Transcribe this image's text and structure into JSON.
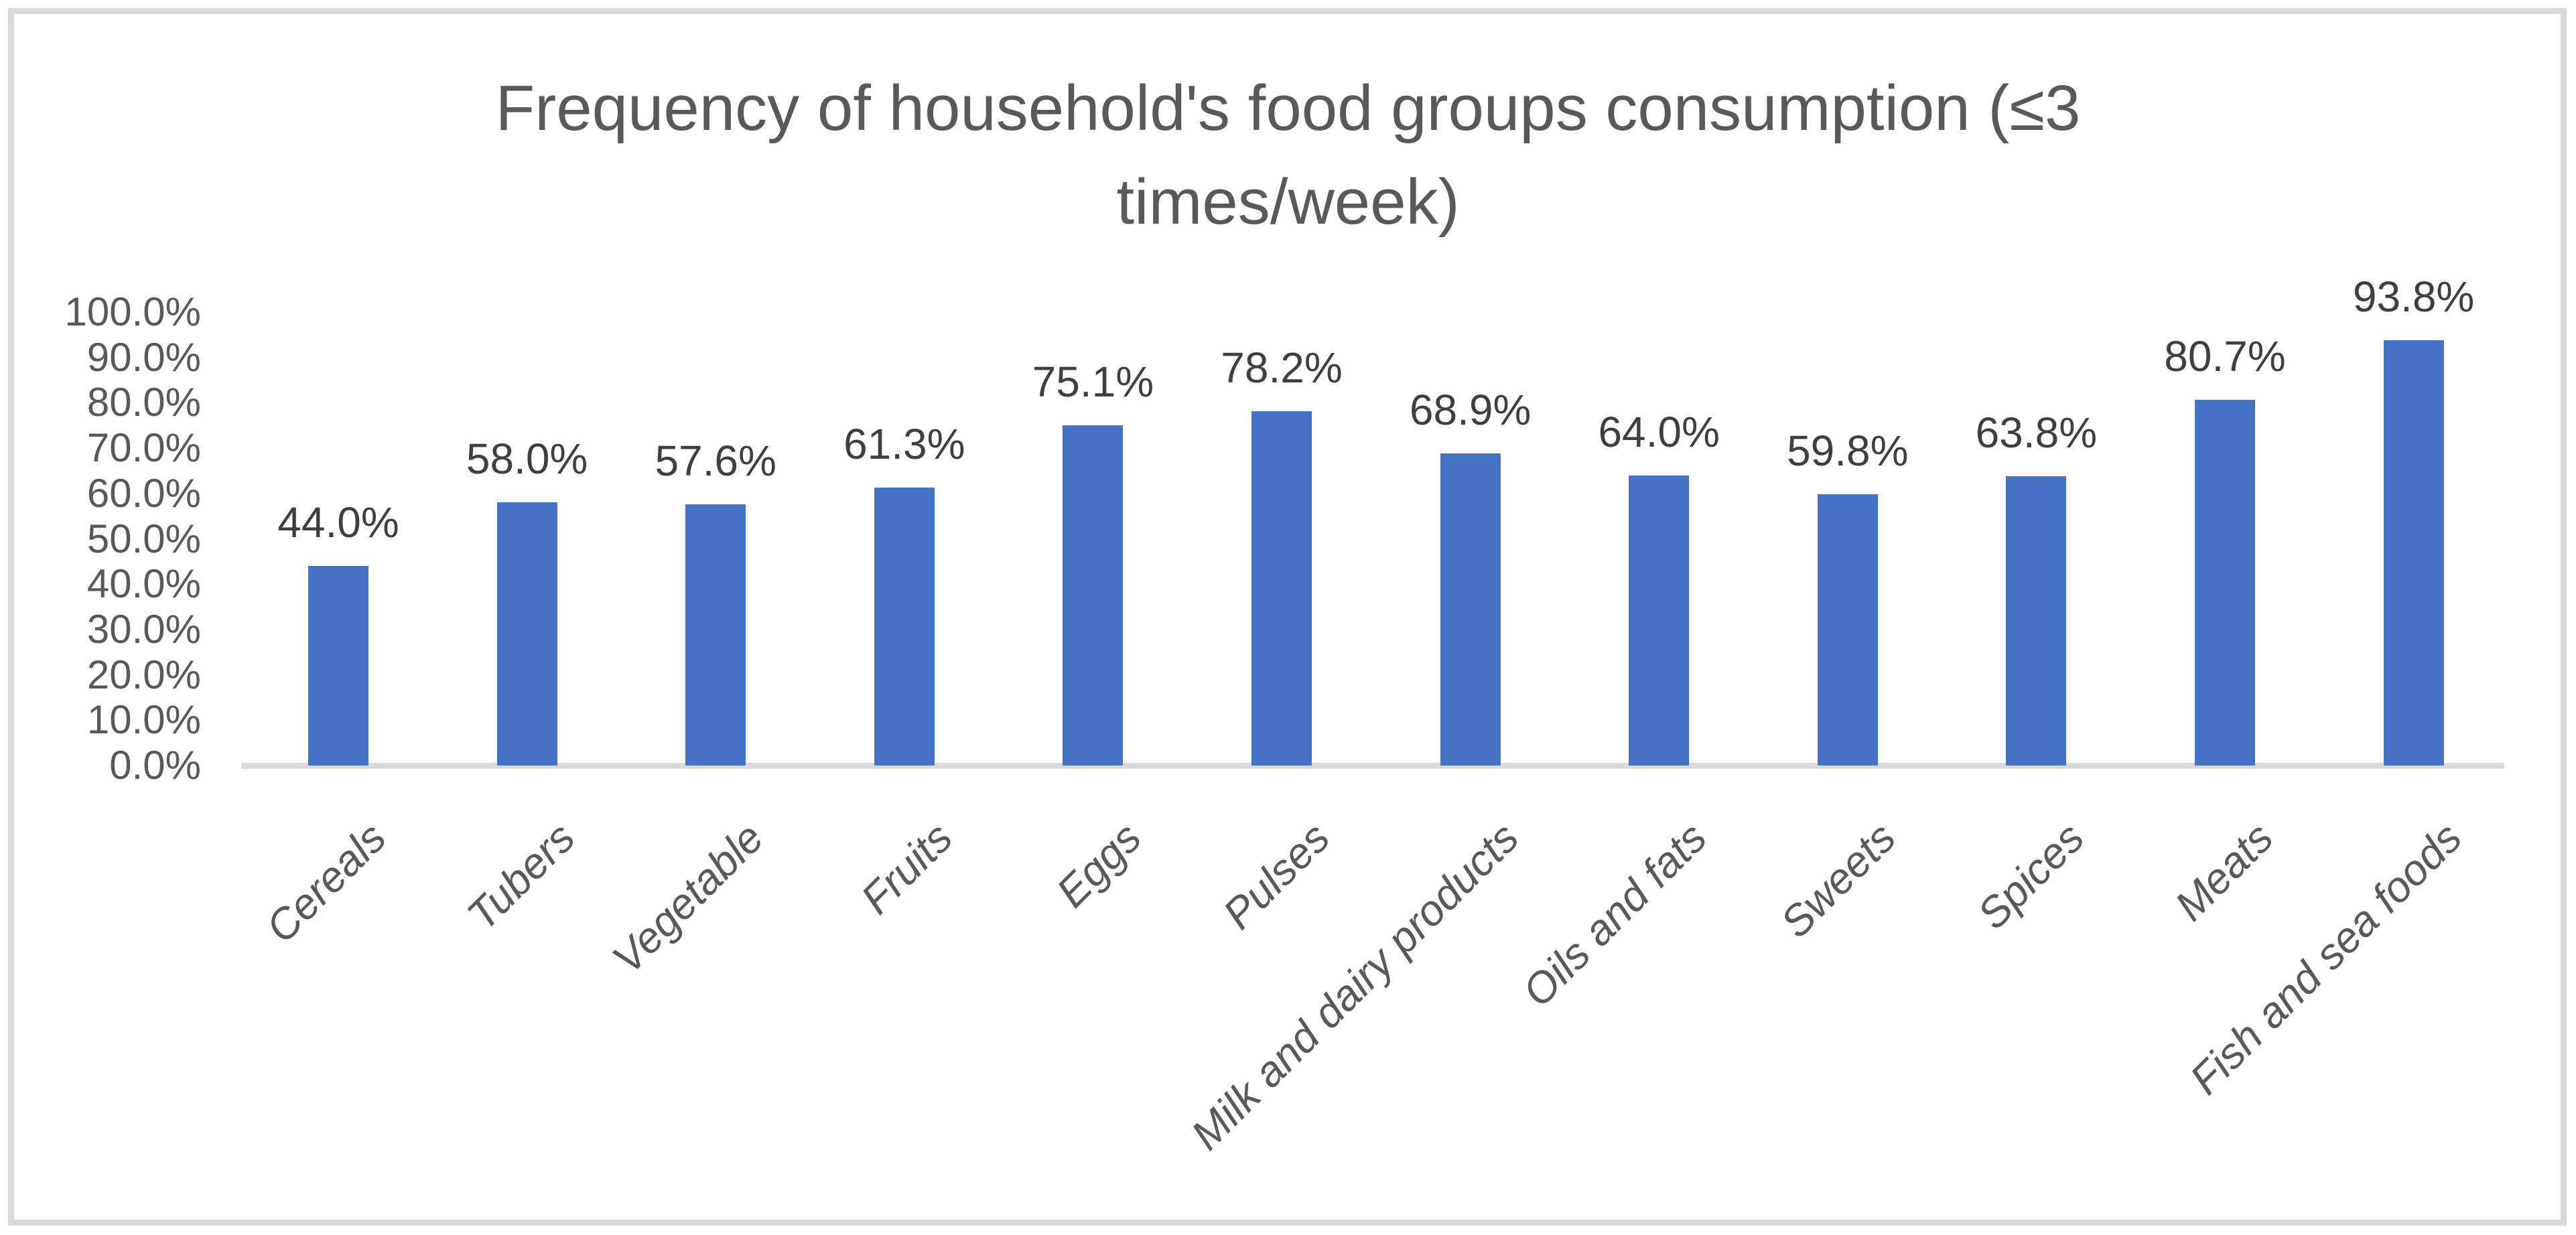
{
  "title": {
    "lines": [
      "Frequency of household's food groups consumption (≤3",
      "times/week)"
    ]
  },
  "colors": {
    "bar": "#4472C4",
    "axis_line": "#D9D9D9",
    "frame_border": "#D9D9D9",
    "title_text": "#595959",
    "tick_text": "#595959",
    "data_label_text": "#3F3F3F"
  },
  "chart_data": {
    "type": "bar",
    "title": "Frequency of household's food groups consumption (≤3 times/week)",
    "categories": [
      "Cereals",
      "Tubers",
      "Vegetable",
      "Fruits",
      "Eggs",
      "Pulses",
      "Milk and dairy products",
      "Oils and fats",
      "Sweets",
      "Spices",
      "Meats",
      "Fish and sea foods"
    ],
    "values": [
      44.0,
      58.0,
      57.6,
      61.3,
      75.1,
      78.2,
      68.9,
      64.0,
      59.8,
      63.8,
      80.7,
      93.8
    ],
    "data_labels": [
      "44.0%",
      "58.0%",
      "57.6%",
      "61.3%",
      "75.1%",
      "78.2%",
      "68.9%",
      "64.0%",
      "59.8%",
      "63.8%",
      "80.7%",
      "93.8%"
    ],
    "xlabel": "",
    "ylabel": "",
    "ylim": [
      0,
      100
    ],
    "y_tick_step": 10,
    "y_tick_labels": [
      "0.0%",
      "10.0%",
      "20.0%",
      "30.0%",
      "40.0%",
      "50.0%",
      "60.0%",
      "70.0%",
      "80.0%",
      "90.0%",
      "100.0%"
    ],
    "grid": false,
    "legend": "none",
    "data_labels_shown": true,
    "category_label_rotation_deg": 45
  }
}
